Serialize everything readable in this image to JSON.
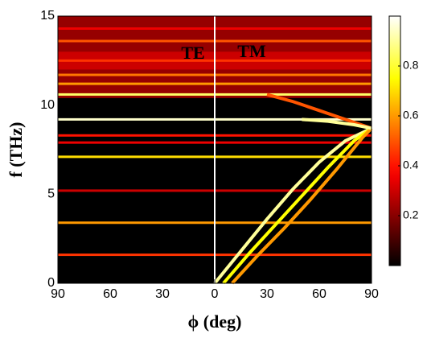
{
  "chart_data": {
    "type": "heatmap",
    "xlabel": "ϕ (deg)",
    "ylabel": "f (THz)",
    "annotations": [
      "TE",
      "TM"
    ],
    "colormap": "hot",
    "xlim": [
      -90,
      90
    ],
    "xticks": [
      {
        "value": -90,
        "label": "90"
      },
      {
        "value": -60,
        "label": "60"
      },
      {
        "value": -30,
        "label": "30"
      },
      0,
      30,
      60,
      90
    ],
    "ylim": [
      0,
      15
    ],
    "yticks": [
      0,
      5,
      10,
      15
    ],
    "clim": [
      0,
      1
    ],
    "cticks": [
      0.2,
      0.4,
      0.6,
      0.8
    ],
    "regions": {
      "f0": [
        10.4,
        12.0
      ],
      "f1": [
        15,
        13.0
      ],
      "intensity": [
        0.22,
        0.3
      ]
    },
    "bands": {
      "f": [
        1.6,
        3.4,
        5.2,
        7.1,
        7.9,
        8.3,
        9.2,
        10.6,
        11.2,
        11.7,
        12.5,
        13.6,
        14.3
      ],
      "intensity": [
        0.45,
        0.6,
        0.3,
        0.7,
        0.35,
        0.4,
        0.95,
        0.85,
        0.6,
        0.55,
        0.45,
        0.5,
        0.35
      ]
    },
    "curves": [
      {
        "phi": [
          0,
          15,
          30,
          45,
          60,
          75,
          90
        ],
        "f": [
          0,
          1.8,
          3.6,
          5.3,
          6.8,
          8.0,
          8.7
        ],
        "intensity": 0.9
      },
      {
        "phi": [
          5,
          20,
          35,
          50,
          65,
          80,
          90
        ],
        "f": [
          0,
          1.7,
          3.3,
          4.9,
          6.5,
          8.0,
          8.7
        ],
        "intensity": 0.75
      },
      {
        "phi": [
          10,
          25,
          40,
          55,
          70,
          85,
          90
        ],
        "f": [
          0,
          1.6,
          3.1,
          4.7,
          6.4,
          8.2,
          8.7
        ],
        "intensity": 0.6
      },
      {
        "phi": [
          30,
          45,
          60,
          75,
          90
        ],
        "f": [
          10.6,
          10.2,
          9.7,
          9.2,
          8.7
        ],
        "intensity": 0.5
      },
      {
        "phi": [
          50,
          65,
          80,
          90
        ],
        "f": [
          9.2,
          9.1,
          8.9,
          8.7
        ],
        "intensity": 0.9
      }
    ]
  }
}
